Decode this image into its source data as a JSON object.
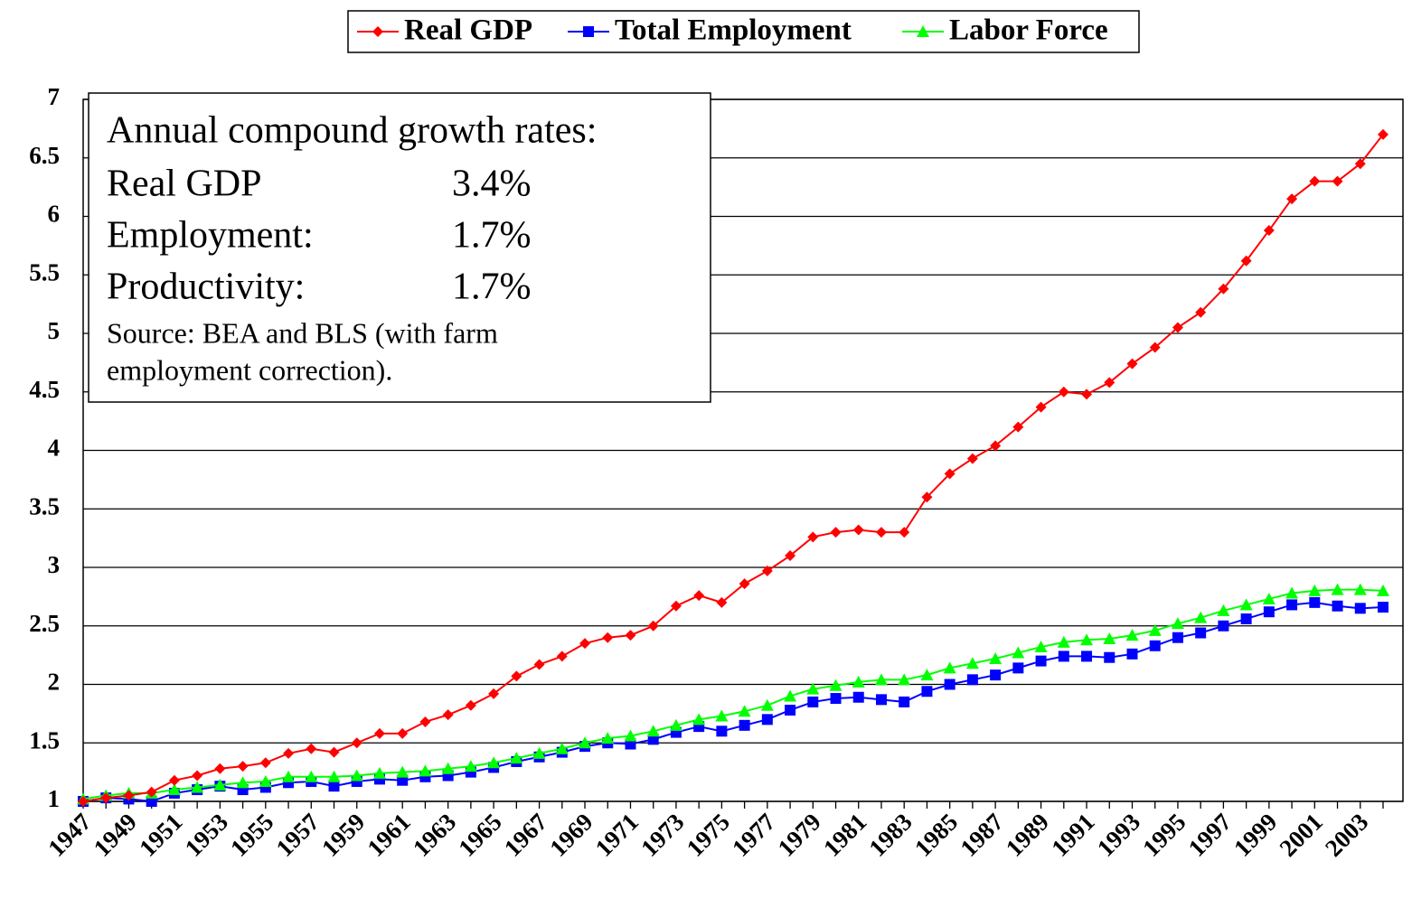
{
  "chart_data": {
    "type": "line",
    "categories": [
      "1947",
      null,
      "1949",
      null,
      "1951",
      null,
      "1953",
      null,
      "1955",
      null,
      "1957",
      null,
      "1959",
      null,
      "1961",
      null,
      "1963",
      null,
      "1965",
      null,
      "1967",
      null,
      "1969",
      null,
      "1971",
      null,
      "1973",
      null,
      "1975",
      null,
      "1977",
      null,
      "1979",
      null,
      "1981",
      null,
      "1983",
      null,
      "1985",
      null,
      "1987",
      null,
      "1989",
      null,
      "1991",
      null,
      "1993",
      null,
      "1995",
      null,
      "1997",
      null,
      "1999",
      null,
      "2001",
      null,
      "2003",
      null
    ],
    "series": [
      {
        "name": "Real GDP",
        "color": "#ff0000",
        "marker": "diamond",
        "values": [
          1.0,
          1.03,
          1.05,
          1.08,
          1.18,
          1.22,
          1.28,
          1.3,
          1.33,
          1.41,
          1.45,
          1.42,
          1.5,
          1.58,
          1.58,
          1.68,
          1.74,
          1.82,
          1.92,
          2.07,
          2.17,
          2.24,
          2.35,
          2.4,
          2.42,
          2.5,
          2.67,
          2.76,
          2.7,
          2.86,
          2.97,
          3.1,
          3.26,
          3.3,
          3.32,
          3.3,
          3.3,
          3.6,
          3.8,
          3.93,
          4.04,
          4.2,
          4.37,
          4.5,
          4.48,
          4.58,
          4.74,
          4.88,
          5.05,
          5.18,
          5.38,
          5.62,
          5.88,
          6.15,
          6.3,
          6.3,
          6.45,
          6.7
        ]
      },
      {
        "name": "Total Employment",
        "color": "#0000ff",
        "marker": "square",
        "values": [
          1.0,
          1.03,
          1.02,
          1.0,
          1.07,
          1.1,
          1.13,
          1.1,
          1.12,
          1.16,
          1.17,
          1.13,
          1.17,
          1.19,
          1.18,
          1.21,
          1.22,
          1.25,
          1.29,
          1.34,
          1.38,
          1.42,
          1.47,
          1.5,
          1.49,
          1.53,
          1.59,
          1.64,
          1.6,
          1.65,
          1.7,
          1.78,
          1.85,
          1.88,
          1.89,
          1.87,
          1.85,
          1.94,
          2.0,
          2.04,
          2.08,
          2.14,
          2.2,
          2.24,
          2.24,
          2.23,
          2.26,
          2.33,
          2.4,
          2.44,
          2.5,
          2.56,
          2.62,
          2.68,
          2.7,
          2.67,
          2.65,
          2.66
        ]
      },
      {
        "name": "Labor Force",
        "color": "#00ff00",
        "marker": "triangle",
        "values": [
          1.02,
          1.05,
          1.07,
          1.07,
          1.1,
          1.12,
          1.14,
          1.16,
          1.17,
          1.21,
          1.21,
          1.21,
          1.22,
          1.24,
          1.25,
          1.26,
          1.28,
          1.3,
          1.33,
          1.37,
          1.41,
          1.45,
          1.5,
          1.54,
          1.56,
          1.6,
          1.65,
          1.7,
          1.73,
          1.77,
          1.82,
          1.9,
          1.96,
          1.99,
          2.02,
          2.04,
          2.04,
          2.08,
          2.14,
          2.18,
          2.22,
          2.27,
          2.32,
          2.36,
          2.38,
          2.39,
          2.42,
          2.46,
          2.52,
          2.57,
          2.63,
          2.68,
          2.73,
          2.78,
          2.8,
          2.81,
          2.81,
          2.8
        ]
      }
    ],
    "ylim": [
      1,
      7
    ],
    "yticks": [
      1,
      1.5,
      2,
      2.5,
      3,
      3.5,
      4,
      4.5,
      5,
      5.5,
      6,
      6.5,
      7
    ],
    "grid": true,
    "legend": "top",
    "annotation": {
      "title": "Annual compound growth rates:",
      "rows": [
        [
          "Real GDP",
          "3.4%"
        ],
        [
          "Employment:",
          "1.7%"
        ],
        [
          "Productivity:",
          "1.7%"
        ]
      ],
      "source": [
        "Source: BEA and BLS (with farm",
        "employment correction)."
      ]
    }
  }
}
